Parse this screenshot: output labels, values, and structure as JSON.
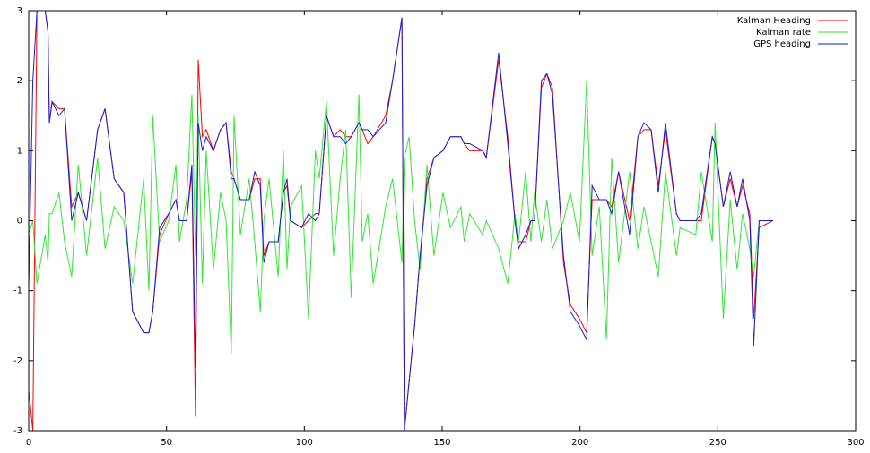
{
  "chart_data": {
    "type": "line",
    "x": [
      0,
      1.5,
      3,
      6,
      7,
      7.5,
      8.5,
      11,
      13,
      15.6,
      18,
      21,
      25,
      27.7,
      31,
      34.5,
      37.7,
      41.7,
      43.6,
      45,
      47.5,
      50.8,
      53.4,
      54.7,
      57.3,
      59.2,
      60.5,
      61.5,
      63,
      64.4,
      67,
      69.6,
      71.6,
      73.5,
      74.5,
      76.8,
      80,
      82,
      84,
      85.3,
      87.2,
      90.5,
      92.4,
      93.7,
      95,
      99,
      101.5,
      104,
      105.4,
      108,
      110.6,
      113,
      115,
      117,
      119.8,
      121,
      123,
      125,
      129.5,
      132,
      135.4,
      136.3,
      138,
      140,
      142,
      144.5,
      147,
      150.3,
      153,
      156.8,
      158,
      160,
      164.7,
      166,
      170.5,
      173.8,
      176.4,
      177.7,
      180.3,
      182.2,
      183.5,
      186,
      188,
      190,
      194,
      196.5,
      199.8,
      202.4,
      204.4,
      207,
      209.6,
      211.5,
      214,
      218,
      221,
      223.2,
      225.8,
      228.4,
      231,
      235,
      236.3,
      242,
      244,
      248,
      249,
      252,
      254.5,
      257,
      259,
      261.6,
      263,
      265,
      270
    ],
    "series": [
      {
        "name": "Kalman Heading",
        "color": "#ff0000",
        "values": [
          -2.4,
          -3,
          3,
          3,
          2.7,
          1.4,
          1.7,
          1.6,
          1.6,
          0.2,
          0.4,
          0,
          1.3,
          1.6,
          0.6,
          0.4,
          -1.3,
          -1.6,
          -1.6,
          -1.3,
          -0.2,
          0.1,
          0.3,
          0,
          0,
          0.7,
          -2.8,
          2.3,
          1.2,
          1.3,
          1,
          1.3,
          1.4,
          0.7,
          0.6,
          0.3,
          0.3,
          0.6,
          0.6,
          -0.5,
          -0.3,
          -0.3,
          0.4,
          0.5,
          0,
          -0.1,
          0,
          0.1,
          0.1,
          1.5,
          1.2,
          1.3,
          1.2,
          1.2,
          1.4,
          1.3,
          1.1,
          1.2,
          1.5,
          2,
          2.9,
          -3,
          -2.3,
          -1.5,
          -0.5,
          0.6,
          0.9,
          1,
          1.2,
          1.2,
          1.1,
          1,
          1,
          0.9,
          2.3,
          1.2,
          0,
          -0.3,
          -0.3,
          0,
          0,
          1.9,
          2.1,
          1.9,
          -0.6,
          -1.2,
          -1.4,
          -1.6,
          0.3,
          0.3,
          0.3,
          0.2,
          0.7,
          0,
          1.2,
          1.3,
          1.3,
          0.5,
          1.3,
          0.1,
          0,
          0,
          0,
          1.2,
          1.1,
          0.2,
          0.6,
          0.2,
          0.5,
          0.1,
          -1.4,
          -0.1,
          0
        ]
      },
      {
        "name": "Kalman rate",
        "color": "#33e633",
        "values": [
          -0.2,
          0,
          -0.9,
          -0.2,
          -0.6,
          0.1,
          0.1,
          0.4,
          -0.3,
          -0.8,
          0.8,
          -0.5,
          0.9,
          -0.4,
          0.2,
          0,
          -0.9,
          0.6,
          -1,
          1.5,
          -0.3,
          0,
          0.8,
          -0.3,
          0.3,
          1.8,
          -0.5,
          1.5,
          -0.9,
          1,
          -0.7,
          0.4,
          0,
          -1.9,
          1.5,
          -0.2,
          0.6,
          -0.3,
          -1.3,
          0,
          0.6,
          -0.8,
          1,
          -0.7,
          0.2,
          0.5,
          -1.4,
          1,
          0.6,
          1.7,
          -0.5,
          0.6,
          1.3,
          -1.1,
          1.8,
          -0.3,
          0.1,
          -0.9,
          0.2,
          0.6,
          -0.6,
          0.9,
          1.2,
          0,
          -0.7,
          0.8,
          -0.5,
          0.4,
          -0.1,
          0.2,
          -0.3,
          0.1,
          -0.2,
          0,
          -0.4,
          -0.9,
          0.1,
          -0.3,
          0.7,
          -0.3,
          0.4,
          -0.3,
          0.3,
          -0.4,
          0,
          0.4,
          -0.3,
          2,
          -0.5,
          0.2,
          -1.7,
          0.9,
          -0.6,
          0.7,
          -0.4,
          0.2,
          -0.3,
          -0.8,
          0.7,
          -0.5,
          -0.1,
          -0.2,
          0.7,
          -0.3,
          1.4,
          -1.4,
          0.3,
          -0.7,
          0.1,
          -0.4,
          -0.8,
          0,
          0
        ]
      },
      {
        "name": "GPS heading",
        "color": "#1a1adb",
        "values": [
          -1,
          2,
          3,
          3,
          2.7,
          1.4,
          1.7,
          1.5,
          1.6,
          0,
          0.4,
          0,
          1.3,
          1.6,
          0.6,
          0.4,
          -1.3,
          -1.6,
          -1.6,
          -1.3,
          -0.1,
          0.1,
          0.3,
          0,
          0,
          0.8,
          -2.1,
          1.4,
          1,
          1.2,
          1,
          1.3,
          1.4,
          0.6,
          0.6,
          0.3,
          0.3,
          0.7,
          0.5,
          -0.6,
          -0.3,
          -0.3,
          0.4,
          0.6,
          0,
          -0.1,
          0.1,
          0,
          0.1,
          1.5,
          1.2,
          1.2,
          1.1,
          1.2,
          1.4,
          1.3,
          1.3,
          1.2,
          1.4,
          2,
          2.9,
          -3,
          -2.3,
          -1.5,
          -0.5,
          0.5,
          0.9,
          1,
          1.2,
          1.2,
          1.1,
          1.1,
          1,
          0.9,
          2.4,
          1.1,
          0,
          -0.4,
          -0.2,
          0,
          0,
          2,
          2.1,
          1.8,
          -0.5,
          -1.3,
          -1.5,
          -1.7,
          0.5,
          0.3,
          0.3,
          0.1,
          0.7,
          -0.2,
          1.2,
          1.4,
          1.3,
          0.4,
          1.4,
          0.1,
          0,
          0,
          0.1,
          1.2,
          1.1,
          0.2,
          0.7,
          0.2,
          0.6,
          0,
          -1.8,
          0,
          0
        ]
      }
    ],
    "xlim": [
      0,
      300
    ],
    "xticks": [
      0,
      50,
      100,
      150,
      200,
      250,
      300
    ],
    "ylim": [
      -3,
      3
    ],
    "yticks": [
      -3,
      -2,
      -1,
      0,
      1,
      2,
      3
    ],
    "legend": "top-right"
  }
}
